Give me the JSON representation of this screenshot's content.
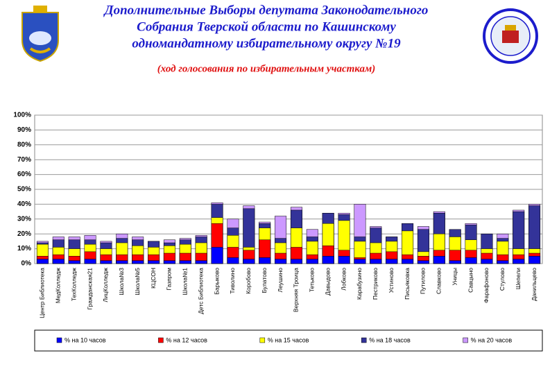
{
  "chart_data": {
    "type": "bar",
    "title": [
      "Дополнительные Выборы депутата Законодательного",
      "Собрания Тверской области по Кашинскому",
      "одномандатному избирательному округу №19"
    ],
    "subtitle": "(ход голосования по избирательным участкам)",
    "categories": [
      "Центр Библиотека",
      "МедКолледж",
      "ТехКолледж",
      "Гражданская21",
      "ЛицКолледж",
      "Школа№3",
      "Школа№5",
      "КЦСОН",
      "Газпром",
      "Школа№1",
      "Детс Библиотека",
      "Барыково",
      "Тиволино",
      "Коробово",
      "Булатово",
      "Леушино",
      "Верхняя Троица",
      "Тетьково",
      "Давыдово",
      "Лобково",
      "Карабузино",
      "Пестриково",
      "Устиново",
      "Письяковка",
      "Путилово",
      "Славково",
      "Уницы",
      "Савцыно",
      "Фарафоново",
      "Стулово",
      "Шепели",
      "Данильцево"
    ],
    "series": [
      {
        "name": "% на 10 часов",
        "color": "#0000ff",
        "values": [
          3,
          3,
          2,
          3,
          2,
          2,
          2,
          2,
          2,
          2,
          2,
          11,
          4,
          3,
          4,
          3,
          3,
          3,
          5,
          5,
          3,
          3,
          3,
          3,
          2,
          5,
          2,
          4,
          3,
          2,
          3,
          5
        ]
      },
      {
        "name": "% на 12 часов",
        "color": "#ff0000",
        "values": [
          5,
          6,
          5,
          8,
          6,
          6,
          6,
          6,
          7,
          7,
          7,
          27,
          11,
          9,
          16,
          7,
          11,
          6,
          12,
          9,
          4,
          7,
          8,
          6,
          5,
          9,
          9,
          9,
          7,
          6,
          6,
          7
        ]
      },
      {
        "name": "% на 15 часов",
        "color": "#ffff00",
        "values": [
          13,
          11,
          10,
          13,
          10,
          14,
          12,
          11,
          12,
          13,
          14,
          31,
          19,
          11,
          24,
          14,
          24,
          15,
          27,
          29,
          15,
          14,
          15,
          22,
          8,
          20,
          18,
          16,
          10,
          15,
          10,
          10
        ]
      },
      {
        "name": "% на 18 часов",
        "color": "#333399",
        "values": [
          14,
          16,
          16,
          16,
          14,
          17,
          16,
          15,
          14,
          16,
          18,
          40,
          24,
          37,
          27,
          17,
          36,
          18,
          34,
          33,
          18,
          24,
          18,
          27,
          23,
          34,
          23,
          26,
          20,
          17,
          35,
          39
        ]
      },
      {
        "name": "% на 20 часов",
        "color": "#cc99ff",
        "values": [
          15,
          18,
          18,
          19,
          15,
          20,
          18,
          15,
          16,
          17,
          19,
          41,
          30,
          39,
          28,
          32,
          38,
          23,
          34,
          34,
          40,
          25,
          18,
          27,
          25,
          35,
          23,
          27,
          20,
          20,
          36,
          40
        ]
      }
    ],
    "ylim": [
      0,
      100
    ],
    "yticks": [
      {
        "value": 0,
        "label": "0%"
      },
      {
        "value": 10,
        "label": "10%"
      },
      {
        "value": 20,
        "label": "20%"
      },
      {
        "value": 30,
        "label": "30%"
      },
      {
        "value": 40,
        "label": "40%"
      },
      {
        "value": 50,
        "label": "50%"
      },
      {
        "value": 60,
        "label": "60%"
      },
      {
        "value": 70,
        "label": "70%"
      },
      {
        "value": 80,
        "label": "80%"
      },
      {
        "value": 90,
        "label": "90%"
      },
      {
        "value": 100,
        "label": "100%"
      }
    ],
    "grid": true,
    "legend": "bottom"
  }
}
